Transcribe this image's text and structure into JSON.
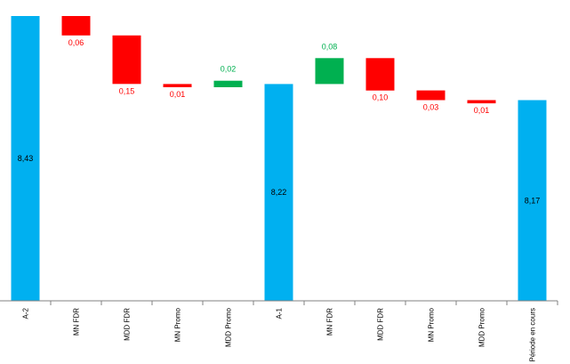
{
  "chart_data": {
    "type": "bar",
    "subtype": "waterfall",
    "title": "",
    "xlabel": "",
    "ylabel": "",
    "ylim": [
      7.55,
      8.43
    ],
    "grid": false,
    "legend": "none",
    "categories": [
      "A-2",
      "MN FDR",
      "MDD FDR",
      "MN Promo",
      "MDD Promo",
      "A-1",
      "MN FDR",
      "MDD FDR",
      "MN Promo",
      "MDD Promo",
      "Période en cours"
    ],
    "steps": [
      {
        "kind": "total",
        "value": 8.43,
        "label": "8,43"
      },
      {
        "kind": "delta",
        "value": -0.06,
        "label": "0,06"
      },
      {
        "kind": "delta",
        "value": -0.15,
        "label": "0,15"
      },
      {
        "kind": "delta",
        "value": -0.01,
        "label": "0,01"
      },
      {
        "kind": "delta",
        "value": 0.02,
        "label": "0,02"
      },
      {
        "kind": "total",
        "value": 8.22,
        "label": "8,22"
      },
      {
        "kind": "delta",
        "value": 0.08,
        "label": "0,08"
      },
      {
        "kind": "delta",
        "value": -0.1,
        "label": "0,10"
      },
      {
        "kind": "delta",
        "value": -0.03,
        "label": "0,03"
      },
      {
        "kind": "delta",
        "value": -0.01,
        "label": "0,01"
      },
      {
        "kind": "total",
        "value": 8.17,
        "label": "8,17"
      }
    ],
    "colors": {
      "total": "#00b0f0",
      "increase": "#00b050",
      "decrease": "#ff0000",
      "total_label": "#000000",
      "increase_label": "#00b050",
      "decrease_label": "#ff0000",
      "axis": "#808080"
    }
  }
}
